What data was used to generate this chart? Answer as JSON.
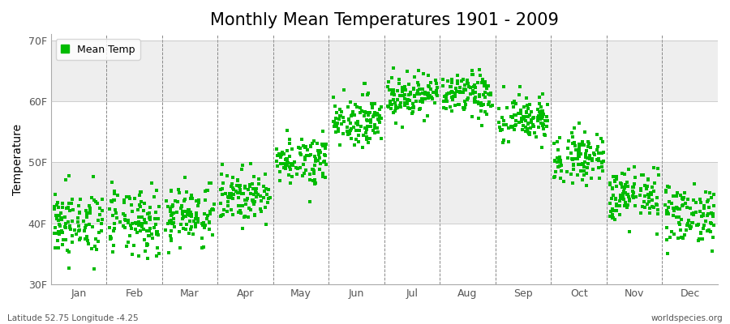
{
  "title": "Monthly Mean Temperatures 1901 - 2009",
  "ylabel": "Temperature",
  "ylim": [
    30,
    71
  ],
  "yticks": [
    30,
    40,
    50,
    60,
    70
  ],
  "yticklabels": [
    "30F",
    "40F",
    "50F",
    "60F",
    "70F"
  ],
  "month_labels": [
    "Jan",
    "Feb",
    "Mar",
    "Apr",
    "May",
    "Jun",
    "Jul",
    "Aug",
    "Sep",
    "Oct",
    "Nov",
    "Dec"
  ],
  "dot_color": "#00bb00",
  "dot_size": 6,
  "legend_label": "Mean Temp",
  "footer_left": "Latitude 52.75 Longitude -4.25",
  "footer_right": "worldspecies.org",
  "bg_color": "#ffffff",
  "plot_bg": "#ffffff",
  "dash_color": "#888888",
  "title_fontsize": 15,
  "axis_fontsize": 10,
  "tick_fontsize": 9,
  "monthly_means": [
    40.0,
    40.0,
    41.5,
    44.5,
    50.5,
    57.0,
    61.0,
    61.0,
    57.0,
    51.0,
    44.5,
    41.5
  ],
  "monthly_stds": [
    2.8,
    2.8,
    2.5,
    2.0,
    2.0,
    2.0,
    1.8,
    1.8,
    2.0,
    2.0,
    2.2,
    2.5
  ],
  "years": 109,
  "seed": 42,
  "band_colors": [
    "#ffffff",
    "#eeeeee"
  ],
  "band_ranges": [
    [
      30,
      40
    ],
    [
      40,
      50
    ],
    [
      50,
      60
    ],
    [
      60,
      70
    ]
  ]
}
